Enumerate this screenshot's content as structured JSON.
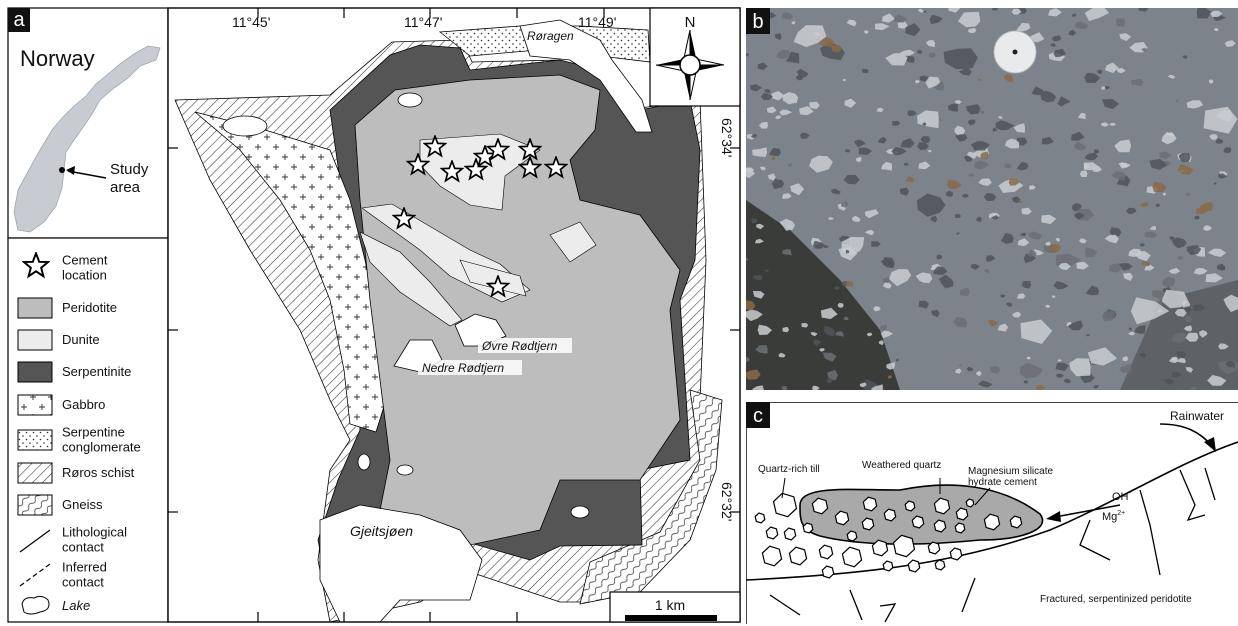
{
  "panel_a": {
    "label": "a",
    "inset": {
      "title": "Norway",
      "study_area": [
        "Study",
        "area"
      ]
    },
    "legend": [
      [
        "Cement",
        "location"
      ],
      [
        "Peridotite"
      ],
      [
        "Dunite"
      ],
      [
        "Serpentinite"
      ],
      [
        "Gabbro"
      ],
      [
        "Serpentine",
        "conglomerate"
      ],
      [
        "Røros schist"
      ],
      [
        "Gneiss"
      ],
      [
        "Lithological",
        "contact"
      ],
      [
        "Inferred",
        "contact"
      ],
      [
        "Lake"
      ]
    ],
    "map": {
      "longitudes": [
        "11°45'",
        "11°47'",
        "11°49'"
      ],
      "latitudes": [
        "62°34'",
        "62°32'"
      ],
      "places": {
        "roragen": "Røragen",
        "ovre": "Øvre Rødtjern",
        "nedre": "Nedre Rødtjern",
        "gjeitsjoen": "Gjeitsjøen"
      },
      "north": "N",
      "scale": "1 km"
    }
  },
  "panel_b": {
    "label": "b"
  },
  "panel_c": {
    "label": "c",
    "rainwater": "Rainwater",
    "till": "Quartz-rich till",
    "weathered": "Weathered quartz",
    "cement": [
      "Magnesium silicate",
      "hydrate cement"
    ],
    "oh": {
      "base": "OH",
      "sup": "-"
    },
    "mg": {
      "base": "Mg",
      "sup": "2+"
    },
    "bedrock": "Fractured, serpentinized peridotite"
  }
}
